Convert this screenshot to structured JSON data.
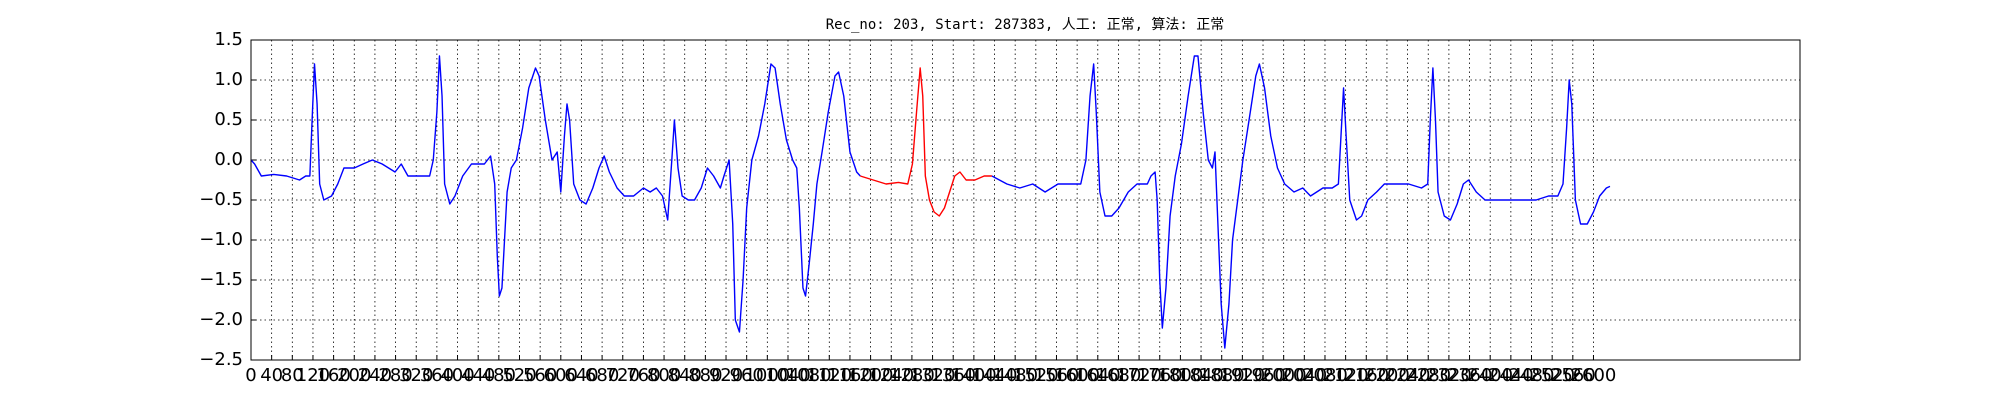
{
  "chart_data": {
    "type": "line",
    "title": "Rec_no: 203, Start: 287383, 人工: 正常, 算法: 正常",
    "grid": true,
    "xlim": [
      0,
      3000
    ],
    "ylim": [
      -2.5,
      1.5
    ],
    "xticks": [
      0,
      40,
      80,
      120,
      160,
      200,
      240,
      280,
      320,
      360,
      400,
      440,
      480,
      520,
      560,
      600,
      640,
      680,
      720,
      760,
      800,
      840,
      880,
      920,
      960,
      1000,
      1040,
      1080,
      1120,
      1160,
      1200,
      1240,
      1280,
      1320,
      1360,
      1400,
      1440,
      1480,
      1520,
      1560,
      1600,
      1640,
      1680,
      1720,
      1760,
      1800,
      1840,
      1880,
      1920,
      1960,
      2000,
      2040,
      2080,
      2120,
      2160,
      2200,
      2240,
      2280,
      2320,
      2360,
      2400,
      2440,
      2480,
      2520,
      2560,
      2600
    ],
    "yticks": [
      {
        "value": -2.5,
        "label": "−2.5"
      },
      {
        "value": -2.0,
        "label": "−2.0"
      },
      {
        "value": -1.5,
        "label": "−1.5"
      },
      {
        "value": -1.0,
        "label": "−1.0"
      },
      {
        "value": -0.5,
        "label": "−0.5"
      },
      {
        "value": 0,
        "label": "0.0"
      },
      {
        "value": 0.5,
        "label": "0.5"
      },
      {
        "value": 1.0,
        "label": "1.0"
      },
      {
        "value": 1.5,
        "label": "1.5"
      }
    ],
    "series": [
      {
        "color": "#0000ff",
        "x": [
          0,
          7,
          20,
          44,
          69,
          94,
          106,
          114,
          119,
          123,
          128,
          133,
          141,
          156,
          168,
          180,
          200,
          217,
          235,
          254,
          279,
          291,
          304,
          328,
          346,
          353,
          360,
          365,
          370,
          375,
          385,
          395,
          410,
          427,
          452,
          464,
          472,
          477,
          481,
          486,
          491,
          496,
          504,
          514,
          526,
          538,
          551,
          558,
          570,
          583,
          593,
          600,
          607,
          612,
          617,
          625,
          637,
          649,
          662,
          674,
          684,
          694,
          709,
          723,
          741,
          760,
          773,
          785,
          797,
          807,
          815,
          820,
          827,
          835,
          847,
          859,
          872,
          884,
          896,
          909,
          916,
          926,
          933,
          938,
          946,
          953,
          960,
          970,
          983,
          995,
          1007,
          1015,
          1025,
          1037,
          1049,
          1057,
          1062,
          1069,
          1074,
          1081,
          1089,
          1096,
          1106,
          1118,
          1131,
          1138,
          1148,
          1160,
          1173,
          1180
        ],
        "values": [
          0.0,
          -0.05,
          -0.2,
          -0.18,
          -0.2,
          -0.25,
          -0.2,
          -0.2,
          0.6,
          1.2,
          0.7,
          -0.3,
          -0.5,
          -0.45,
          -0.3,
          -0.1,
          -0.1,
          -0.05,
          0.0,
          -0.05,
          -0.15,
          -0.05,
          -0.2,
          -0.2,
          -0.2,
          0.0,
          0.6,
          1.3,
          0.8,
          -0.3,
          -0.55,
          -0.45,
          -0.2,
          -0.05,
          -0.05,
          0.05,
          -0.3,
          -1.2,
          -1.7,
          -1.6,
          -1.0,
          -0.4,
          -0.1,
          0.0,
          0.4,
          0.9,
          1.15,
          1.05,
          0.5,
          0.0,
          0.1,
          -0.4,
          0.3,
          0.7,
          0.5,
          -0.3,
          -0.5,
          -0.55,
          -0.35,
          -0.1,
          0.05,
          -0.15,
          -0.35,
          -0.45,
          -0.45,
          -0.35,
          -0.4,
          -0.35,
          -0.45,
          -0.75,
          0.0,
          0.5,
          -0.1,
          -0.45,
          -0.5,
          -0.5,
          -0.35,
          -0.1,
          -0.2,
          -0.35,
          -0.2,
          0.0,
          -0.8,
          -2.0,
          -2.15,
          -1.5,
          -0.6,
          0.0,
          0.3,
          0.7,
          1.2,
          1.15,
          0.7,
          0.25,
          0.0,
          -0.1,
          -0.6,
          -1.6,
          -1.7,
          -1.3,
          -0.8,
          -0.3,
          0.1,
          0.6,
          1.05,
          1.1,
          0.8,
          0.1,
          -0.15,
          -0.2
        ]
      },
      {
        "color": "#ff0000",
        "x": [
          1180,
          1205,
          1230,
          1254,
          1272,
          1281,
          1289,
          1296,
          1301,
          1306,
          1314,
          1323,
          1333,
          1343,
          1353,
          1363,
          1373,
          1385,
          1402,
          1420,
          1435
        ],
        "values": [
          -0.2,
          -0.25,
          -0.3,
          -0.28,
          -0.3,
          -0.05,
          0.6,
          1.15,
          0.8,
          -0.2,
          -0.5,
          -0.65,
          -0.7,
          -0.6,
          -0.4,
          -0.2,
          -0.15,
          -0.25,
          -0.25,
          -0.2,
          -0.2
        ]
      },
      {
        "color": "#0000ff",
        "x": [
          1435,
          1464,
          1489,
          1514,
          1538,
          1563,
          1588,
          1607,
          1617,
          1625,
          1632,
          1637,
          1644,
          1654,
          1667,
          1681,
          1699,
          1716,
          1736,
          1743,
          1751,
          1755,
          1760,
          1765,
          1772,
          1780,
          1790,
          1802,
          1815,
          1827,
          1834,
          1844,
          1854,
          1862,
          1867,
          1872,
          1879,
          1886,
          1894,
          1901,
          1911,
          1921,
          1933,
          1946,
          1953,
          1963,
          1975,
          1988,
          2002,
          2020,
          2037,
          2052,
          2064,
          2076,
          2094,
          2106,
          2111,
          2116,
          2121,
          2128,
          2141,
          2151,
          2163,
          2180,
          2195,
          2217,
          2242,
          2267,
          2279,
          2284,
          2289,
          2294,
          2299,
          2311,
          2323,
          2336,
          2348,
          2358,
          2373,
          2390,
          2415,
          2439,
          2464,
          2489,
          2513,
          2531,
          2541,
          2548,
          2553,
          2558,
          2565,
          2575,
          2588,
          2600,
          2612,
          2625,
          2632
        ],
        "values": [
          -0.2,
          -0.3,
          -0.35,
          -0.3,
          -0.4,
          -0.3,
          -0.3,
          -0.3,
          0.0,
          0.8,
          1.2,
          0.6,
          -0.4,
          -0.7,
          -0.7,
          -0.6,
          -0.4,
          -0.3,
          -0.3,
          -0.2,
          -0.15,
          -0.5,
          -1.5,
          -2.1,
          -1.6,
          -0.7,
          -0.2,
          0.2,
          0.8,
          1.3,
          1.3,
          0.6,
          0.0,
          -0.1,
          0.1,
          -0.7,
          -1.8,
          -2.35,
          -1.8,
          -1.0,
          -0.5,
          0.0,
          0.5,
          1.05,
          1.2,
          0.9,
          0.3,
          -0.1,
          -0.3,
          -0.4,
          -0.35,
          -0.45,
          -0.4,
          -0.35,
          -0.35,
          -0.3,
          0.3,
          0.9,
          0.3,
          -0.5,
          -0.75,
          -0.7,
          -0.5,
          -0.4,
          -0.3,
          -0.3,
          -0.3,
          -0.35,
          -0.3,
          0.5,
          1.15,
          0.5,
          -0.4,
          -0.7,
          -0.75,
          -0.55,
          -0.3,
          -0.25,
          -0.4,
          -0.5,
          -0.5,
          -0.5,
          -0.5,
          -0.5,
          -0.45,
          -0.45,
          -0.3,
          0.4,
          1.0,
          0.7,
          -0.5,
          -0.8,
          -0.8,
          -0.65,
          -0.45,
          -0.35,
          -0.33
        ]
      }
    ]
  }
}
